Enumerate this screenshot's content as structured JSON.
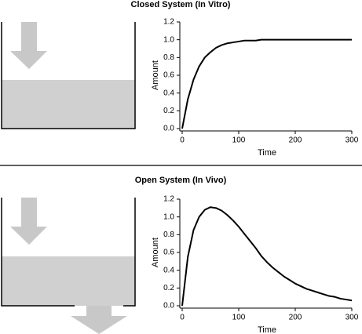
{
  "chart_data": [
    {
      "type": "line",
      "title": "Closed System (In Vitro)",
      "x_label": "Time",
      "y_label": "Amount",
      "x": [
        0,
        10,
        20,
        30,
        40,
        50,
        60,
        70,
        80,
        90,
        100,
        110,
        120,
        130,
        140,
        150,
        160,
        170,
        180,
        190,
        200,
        210,
        220,
        230,
        240,
        250,
        260,
        270,
        280,
        290,
        300
      ],
      "series": [
        {
          "color": "#000000",
          "values": [
            0,
            0.33,
            0.55,
            0.7,
            0.8,
            0.86,
            0.91,
            0.94,
            0.96,
            0.97,
            0.98,
            0.99,
            0.99,
            0.99,
            1.0,
            1.0,
            1.0,
            1.0,
            1.0,
            1.0,
            1.0,
            1.0,
            1.0,
            1.0,
            1.0,
            1.0,
            1.0,
            1.0,
            1.0,
            1.0,
            1.0
          ]
        }
      ],
      "xlim": [
        0,
        300
      ],
      "xticks": [
        0,
        100,
        200,
        300
      ],
      "ylim": [
        0,
        1.2
      ],
      "yticks": [
        {
          "value": 0,
          "label": "0.0"
        },
        {
          "value": 0.2,
          "label": "0.2"
        },
        {
          "value": 0.4,
          "label": "0.4"
        },
        {
          "value": 0.6,
          "label": "0.6"
        },
        {
          "value": 0.8,
          "label": "0.8"
        },
        {
          "value": 1,
          "label": "1.0"
        },
        {
          "value": 1.2,
          "label": "1.2"
        }
      ]
    },
    {
      "type": "line",
      "title": "Open System (In Vivo)",
      "x_label": "Time",
      "y_label": "Amount",
      "x": [
        0,
        10,
        20,
        30,
        40,
        50,
        60,
        70,
        80,
        90,
        100,
        110,
        120,
        130,
        140,
        150,
        160,
        170,
        180,
        190,
        200,
        210,
        220,
        230,
        240,
        250,
        260,
        270,
        280,
        290,
        300
      ],
      "series": [
        {
          "color": "#000000",
          "values": [
            0,
            0.55,
            0.85,
            1.0,
            1.08,
            1.11,
            1.1,
            1.07,
            1.02,
            0.96,
            0.89,
            0.81,
            0.73,
            0.65,
            0.56,
            0.49,
            0.43,
            0.38,
            0.33,
            0.29,
            0.25,
            0.22,
            0.19,
            0.17,
            0.15,
            0.13,
            0.11,
            0.1,
            0.08,
            0.07,
            0.06
          ]
        }
      ],
      "xlim": [
        0,
        300
      ],
      "xticks": [
        0,
        100,
        200,
        300
      ],
      "ylim": [
        0,
        1.2
      ],
      "yticks": [
        {
          "value": 0,
          "label": "0.0"
        },
        {
          "value": 0.2,
          "label": "0.2"
        },
        {
          "value": 0.4,
          "label": "0.4"
        },
        {
          "value": 0.6,
          "label": "0.6"
        },
        {
          "value": 0.8,
          "label": "0.8"
        },
        {
          "value": 1,
          "label": "1.0"
        },
        {
          "value": 1.2,
          "label": "1.2"
        }
      ]
    }
  ]
}
